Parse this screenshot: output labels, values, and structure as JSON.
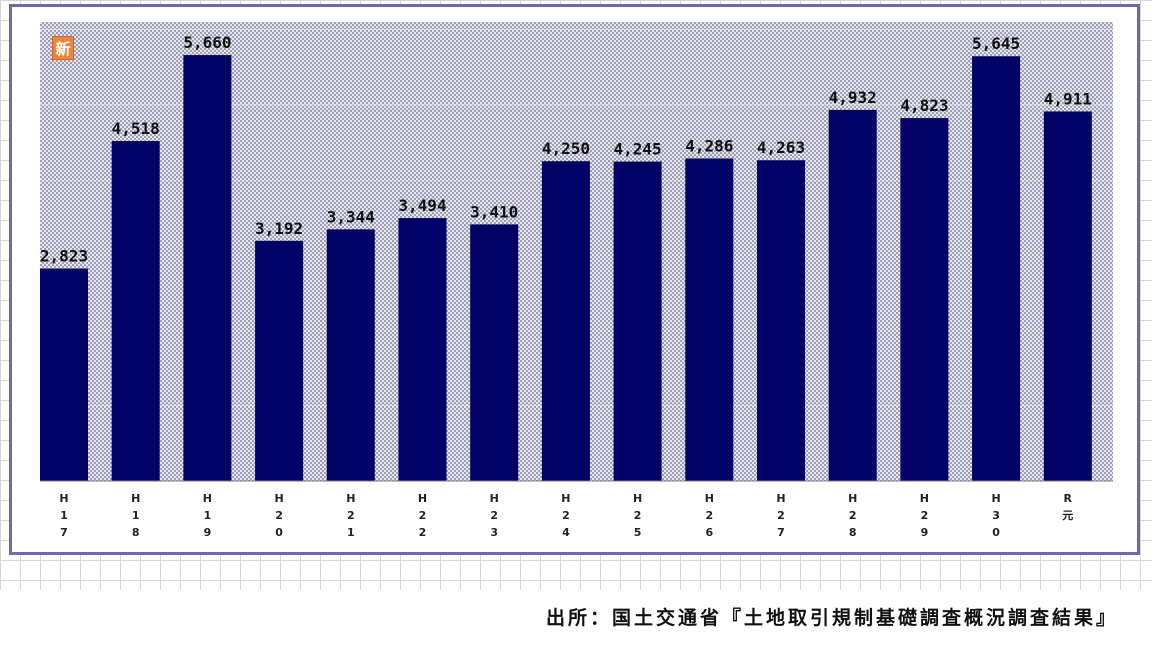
{
  "badge_text": "新",
  "source_text": "出所：国土交通省『土地取引規制基礎調査概況調査結果』",
  "colors": {
    "bar": "#000066",
    "plot_background": "#c8c8dc",
    "frame": "#6b6ba8",
    "badge": "#e9873f"
  },
  "chart_data": {
    "type": "bar",
    "title": "",
    "xlabel": "",
    "ylabel": "",
    "ylim": [
      0,
      6100
    ],
    "grid": true,
    "legend": "none",
    "categories": [
      "H 1 7",
      "H 1 8",
      "H 1 9",
      "H 2 0",
      "H 2 1",
      "H 2 2",
      "H 2 3",
      "H 2 4",
      "H 2 5",
      "H 2 6",
      "H 2 7",
      "H 2 8",
      "H 2 9",
      "H 3 0",
      "R 元"
    ],
    "tick_labels": [
      [
        "H",
        "1",
        "7"
      ],
      [
        "H",
        "1",
        "8"
      ],
      [
        "H",
        "1",
        "9"
      ],
      [
        "H",
        "2",
        "0"
      ],
      [
        "H",
        "2",
        "1"
      ],
      [
        "H",
        "2",
        "2"
      ],
      [
        "H",
        "2",
        "3"
      ],
      [
        "H",
        "2",
        "4"
      ],
      [
        "H",
        "2",
        "5"
      ],
      [
        "H",
        "2",
        "6"
      ],
      [
        "H",
        "2",
        "7"
      ],
      [
        "H",
        "2",
        "8"
      ],
      [
        "H",
        "2",
        "9"
      ],
      [
        "H",
        "3",
        "0"
      ],
      [
        "R",
        "元"
      ]
    ],
    "values": [
      2823,
      4518,
      5660,
      3192,
      3344,
      3494,
      3410,
      4250,
      4245,
      4286,
      4263,
      4932,
      4823,
      5645,
      4911
    ],
    "value_labels": [
      "2,823",
      "4,518",
      "5,660",
      "3,192",
      "3,344",
      "3,494",
      "3,410",
      "4,250",
      "4,245",
      "4,286",
      "4,263",
      "4,932",
      "4,823",
      "5,645",
      "4,911"
    ]
  }
}
